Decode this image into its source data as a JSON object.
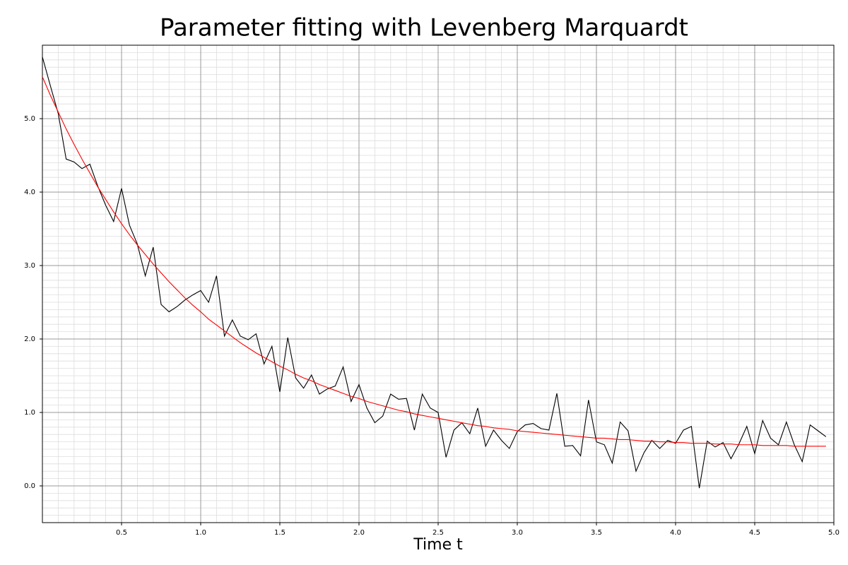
{
  "chart_data": {
    "type": "line",
    "title": "Parameter fitting with Levenberg Marquardt",
    "x_label": "Time t",
    "x": [
      0,
      0.05,
      0.1,
      0.15,
      0.2,
      0.25,
      0.3,
      0.35,
      0.4,
      0.45,
      0.5,
      0.55,
      0.6,
      0.65,
      0.7,
      0.75,
      0.8,
      0.85,
      0.9,
      0.95,
      1,
      1.05,
      1.1,
      1.15,
      1.2,
      1.25,
      1.3,
      1.35,
      1.4,
      1.45,
      1.5,
      1.55,
      1.6,
      1.65,
      1.7,
      1.75,
      1.8,
      1.85,
      1.9,
      1.95,
      2,
      2.05,
      2.1,
      2.15,
      2.2,
      2.25,
      2.3,
      2.35,
      2.4,
      2.45,
      2.5,
      2.55,
      2.6,
      2.65,
      2.7,
      2.75,
      2.8,
      2.85,
      2.9,
      2.95,
      3,
      3.05,
      3.1,
      3.15,
      3.2,
      3.25,
      3.3,
      3.35,
      3.4,
      3.45,
      3.5,
      3.55,
      3.6,
      3.65,
      3.7,
      3.75,
      3.8,
      3.85,
      3.9,
      3.95,
      4,
      4.05,
      4.1,
      4.15,
      4.2,
      4.25,
      4.3,
      4.35,
      4.4,
      4.45,
      4.5,
      4.55,
      4.6,
      4.65,
      4.7,
      4.75,
      4.8,
      4.85,
      4.9,
      4.95
    ],
    "series": [
      {
        "color": "#000000",
        "values": [
          5.84,
          5.45,
          5.07,
          4.45,
          4.41,
          4.32,
          4.38,
          4.08,
          3.82,
          3.6,
          4.05,
          3.55,
          3.29,
          2.86,
          3.25,
          2.47,
          2.37,
          2.44,
          2.53,
          2.6,
          2.66,
          2.5,
          2.86,
          2.04,
          2.26,
          2.04,
          1.99,
          2.07,
          1.66,
          1.9,
          1.28,
          2.02,
          1.47,
          1.33,
          1.51,
          1.25,
          1.32,
          1.36,
          1.62,
          1.15,
          1.38,
          1.06,
          0.86,
          0.95,
          1.25,
          1.18,
          1.19,
          0.76,
          1.25,
          1.06,
          1.0,
          0.39,
          0.76,
          0.86,
          0.71,
          1.06,
          0.54,
          0.76,
          0.62,
          0.51,
          0.74,
          0.83,
          0.85,
          0.78,
          0.76,
          1.26,
          0.54,
          0.55,
          0.41,
          1.17,
          0.6,
          0.56,
          0.31,
          0.87,
          0.75,
          0.2,
          0.45,
          0.62,
          0.51,
          0.62,
          0.58,
          0.76,
          0.81,
          -0.03,
          0.61,
          0.53,
          0.59,
          0.37,
          0.57,
          0.81,
          0.44,
          0.89,
          0.65,
          0.56,
          0.87,
          0.56,
          0.33,
          0.83,
          0.75,
          0.67
        ]
      },
      {
        "color": "#ff0000",
        "values": [
          5.57,
          5.32,
          5.09,
          4.86,
          4.65,
          4.45,
          4.26,
          4.07,
          3.9,
          3.73,
          3.57,
          3.42,
          3.28,
          3.15,
          3.02,
          2.9,
          2.78,
          2.67,
          2.56,
          2.46,
          2.37,
          2.27,
          2.19,
          2.11,
          2.03,
          1.95,
          1.88,
          1.81,
          1.75,
          1.69,
          1.63,
          1.58,
          1.52,
          1.47,
          1.43,
          1.38,
          1.34,
          1.3,
          1.26,
          1.22,
          1.19,
          1.15,
          1.12,
          1.09,
          1.06,
          1.03,
          1.01,
          0.98,
          0.96,
          0.94,
          0.92,
          0.9,
          0.88,
          0.86,
          0.84,
          0.82,
          0.81,
          0.79,
          0.78,
          0.77,
          0.75,
          0.74,
          0.73,
          0.72,
          0.71,
          0.7,
          0.69,
          0.68,
          0.67,
          0.66,
          0.65,
          0.65,
          0.64,
          0.63,
          0.63,
          0.62,
          0.61,
          0.61,
          0.6,
          0.6,
          0.59,
          0.59,
          0.58,
          0.58,
          0.58,
          0.57,
          0.57,
          0.57,
          0.56,
          0.56,
          0.56,
          0.55,
          0.55,
          0.55,
          0.55,
          0.54,
          0.54,
          0.54,
          0.54,
          0.54
        ]
      }
    ],
    "xlim": [
      0,
      5
    ],
    "ylim": [
      -0.5,
      6
    ],
    "xticks": [
      0.5,
      {
        "value": 1,
        "label": "1.0"
      },
      1.5,
      {
        "value": 2,
        "label": "2.0"
      },
      2.5,
      {
        "value": 3,
        "label": "3.0"
      },
      3.5,
      {
        "value": 4,
        "label": "4.0"
      },
      4.5,
      {
        "value": 5,
        "label": "5.0"
      }
    ],
    "yticks": [
      {
        "value": 0,
        "label": "0.0"
      },
      {
        "value": 1,
        "label": "1.0"
      },
      {
        "value": 2,
        "label": "2.0"
      },
      {
        "value": 3,
        "label": "3.0"
      },
      {
        "value": 4,
        "label": "4.0"
      },
      {
        "value": 5,
        "label": "5.0"
      }
    ],
    "grid": true,
    "minor_grid": true
  }
}
